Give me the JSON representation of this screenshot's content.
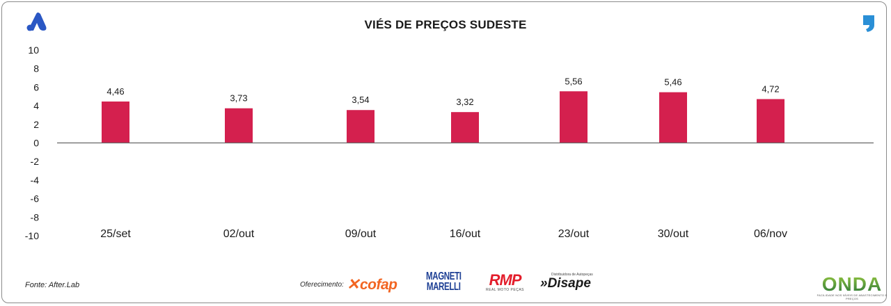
{
  "title": "VIÉS DE PREÇOS SUDESTE",
  "source": "Fonte: After.Lab",
  "offer_label": "Oferecimento:",
  "sponsors": {
    "cofap": "cofap",
    "magneti_line1": "MAGNETI",
    "magneti_line2": "MARELLI",
    "rmp": "RMP",
    "rmp_sub": "REAL MOTO PEÇAS",
    "disape_top": "Distribuidora de Autopeças",
    "disape": "Disape",
    "onda": "ONDA",
    "onda_sub": "FACILIDADE NOS NÍVEIS DE ABASTECIMENTO E PREÇOS"
  },
  "colors": {
    "bar": "#d4204e",
    "axis": "#555555",
    "brand_blue": "#2a57c4",
    "quote_blue": "#2a8fd6"
  },
  "icons": {
    "top_left": "after-lab-logo-icon",
    "top_right": "quote-mark-icon"
  },
  "chart_data": {
    "type": "bar",
    "title": "VIÉS DE PREÇOS SUDESTE",
    "categories": [
      "25/set",
      "02/out",
      "09/out",
      "16/out",
      "23/out",
      "30/out",
      "06/nov"
    ],
    "values": [
      4.46,
      3.73,
      3.54,
      3.32,
      5.56,
      5.46,
      4.72
    ],
    "value_labels": [
      "4,46",
      "3,73",
      "3,54",
      "3,32",
      "5,56",
      "5,46",
      "4,72"
    ],
    "ylim": [
      -10,
      10
    ],
    "yticks": [
      10,
      8,
      6,
      4,
      2,
      0,
      -2,
      -4,
      -6,
      -8,
      -10
    ],
    "ytick_labels": [
      "10",
      "8",
      "6",
      "4",
      "2",
      "0",
      "-2",
      "-4",
      "-6",
      "-8",
      "-10"
    ],
    "xlabel": "",
    "ylabel": "",
    "grid": false,
    "legend": "none"
  }
}
